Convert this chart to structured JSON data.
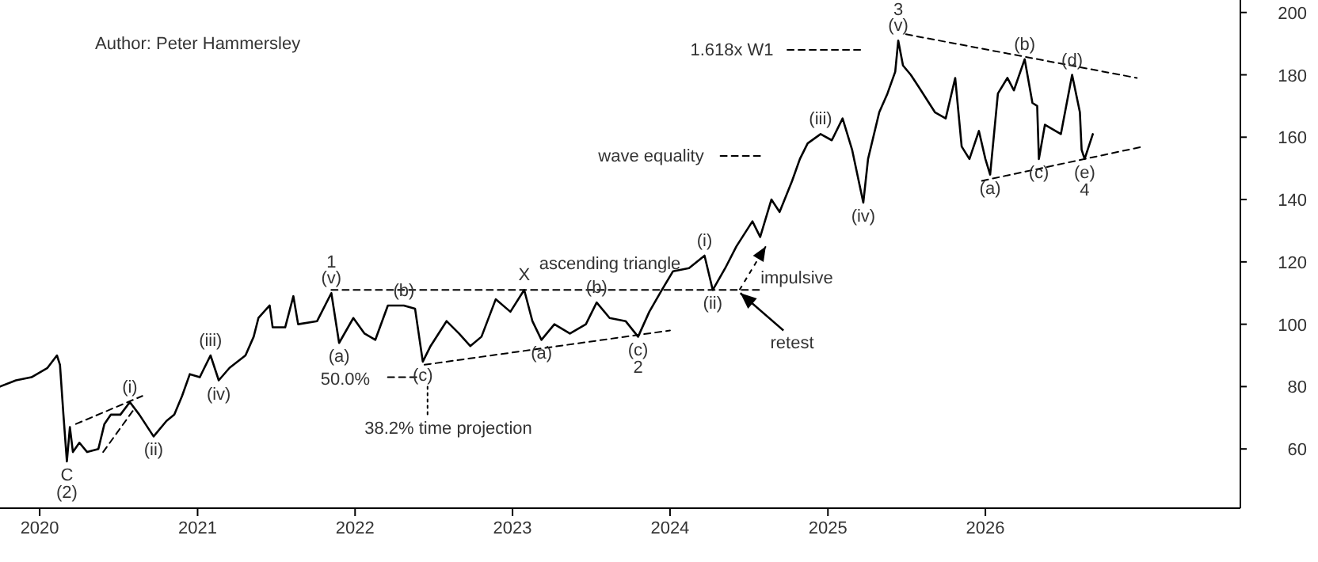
{
  "chart_data": {
    "type": "line",
    "xlim": [
      "2019-10-01",
      "2027-08-15"
    ],
    "ylim": [
      41,
      204
    ],
    "xticks": [
      {
        "value": "2020-01-01",
        "label": "2020"
      },
      {
        "value": "2021-01-01",
        "label": "2021"
      },
      {
        "value": "2022-01-01",
        "label": "2022"
      },
      {
        "value": "2023-01-01",
        "label": "2023"
      },
      {
        "value": "2024-01-01",
        "label": "2024"
      },
      {
        "value": "2025-01-01",
        "label": "2025"
      },
      {
        "value": "2026-01-01",
        "label": "2026"
      }
    ],
    "yticks": [
      60,
      80,
      100,
      120,
      140,
      160,
      180,
      200
    ],
    "series": [
      {
        "color": "#000000",
        "line_style": "solid",
        "x": [
          "2019-10-01",
          "2019-11-07",
          "2019-12-13",
          "2020-01-19",
          "2020-02-10",
          "2020-02-17",
          "2020-02-25",
          "2020-03-04",
          "2020-03-11",
          "2020-03-18",
          "2020-04-02",
          "2020-04-20",
          "2020-05-16",
          "2020-05-30",
          "2020-06-14",
          "2020-07-06",
          "2020-07-28",
          "2020-08-19",
          "2020-09-21",
          "2020-10-21",
          "2020-11-08",
          "2020-11-26",
          "2020-12-14",
          "2021-01-06",
          "2021-01-31",
          "2021-02-19",
          "2021-03-16",
          "2021-04-22",
          "2021-05-11",
          "2021-05-22",
          "2021-06-17",
          "2021-06-24",
          "2021-07-23",
          "2021-08-11",
          "2021-08-22",
          "2021-10-05",
          "2021-11-07",
          "2021-11-25",
          "2021-12-28",
          "2022-01-23",
          "2022-02-17",
          "2022-03-18",
          "2022-04-24",
          "2022-05-20",
          "2022-06-07",
          "2022-06-25",
          "2022-08-01",
          "2022-08-30",
          "2022-09-25",
          "2022-10-21",
          "2022-11-23",
          "2022-12-27",
          "2023-01-28",
          "2023-02-16",
          "2023-03-09",
          "2023-04-08",
          "2023-05-14",
          "2023-06-20",
          "2023-07-15",
          "2023-08-14",
          "2023-09-20",
          "2023-10-19",
          "2023-11-14",
          "2023-12-13",
          "2024-01-08",
          "2024-02-14",
          "2024-03-21",
          "2024-04-09",
          "2024-05-08",
          "2024-06-03",
          "2024-07-10",
          "2024-07-28",
          "2024-08-23",
          "2024-09-11",
          "2024-10-10",
          "2024-10-28",
          "2024-11-15",
          "2024-12-15",
          "2025-01-10",
          "2025-02-04",
          "2025-02-26",
          "2025-03-24",
          "2025-04-04",
          "2025-04-30",
          "2025-05-19",
          "2025-06-06",
          "2025-06-13",
          "2025-06-24",
          "2025-07-12",
          "2025-07-31",
          "2025-09-06",
          "2025-10-01",
          "2025-10-23",
          "2025-11-07",
          "2025-11-25",
          "2025-12-17",
          "2026-01-01",
          "2026-01-12",
          "2026-01-30",
          "2026-02-21",
          "2026-03-08",
          "2026-04-02",
          "2026-04-20",
          "2026-05-01",
          "2026-05-05",
          "2026-05-19",
          "2026-06-25",
          "2026-07-21",
          "2026-08-08",
          "2026-08-12",
          "2026-08-19",
          "2026-09-07"
        ],
        "values": [
          80,
          82,
          83,
          86,
          90,
          87,
          71,
          56,
          67,
          59,
          62,
          59,
          60,
          68,
          71,
          71,
          75,
          71,
          64,
          69,
          71,
          77,
          84,
          83,
          90,
          82,
          86,
          90,
          96,
          102,
          106,
          99,
          99,
          109,
          100,
          101,
          110,
          94,
          102,
          97,
          95,
          106,
          106,
          105,
          88,
          93,
          101,
          97,
          93,
          96,
          108,
          104,
          111,
          101,
          95,
          100,
          97,
          100,
          107,
          102,
          101,
          96,
          104,
          111,
          117,
          118,
          122,
          111,
          118,
          125,
          133,
          128,
          140,
          136,
          146,
          153,
          158,
          161,
          159,
          166,
          156,
          139,
          153,
          168,
          174,
          181,
          191,
          183,
          180,
          176,
          168,
          166,
          179,
          157,
          153,
          162,
          153,
          148,
          174,
          179,
          175,
          185,
          171,
          170,
          153,
          164,
          161,
          180,
          168,
          156,
          153,
          161
        ]
      },
      {
        "color": "#000000",
        "line_style": "dashed",
        "x": [
          "2025-07-01",
          "2026-12-18"
        ],
        "values": [
          193,
          179
        ]
      },
      {
        "color": "#000000",
        "line_style": "dashed",
        "x": [
          "2025-12-24",
          "2027-01-02"
        ],
        "values": [
          146,
          157
        ]
      },
      {
        "color": "#000000",
        "line_style": "dashed",
        "x": [
          "2021-11-07",
          "2024-08-05"
        ],
        "values": [
          111,
          111
        ]
      },
      {
        "color": "#000000",
        "line_style": "dashed",
        "x": [
          "2022-06-11",
          "2024-01-01"
        ],
        "values": [
          87,
          98
        ]
      },
      {
        "color": "#000000",
        "line_style": "dashed",
        "x": [
          "2020-03-25",
          "2020-08-26"
        ],
        "values": [
          68,
          77
        ]
      },
      {
        "color": "#000000",
        "line_style": "dashed",
        "x": [
          "2020-05-27",
          "2020-08-08"
        ],
        "values": [
          59,
          73
        ]
      },
      {
        "color": "#000000",
        "line_style": "dashed",
        "x": [
          "2024-09-29",
          "2025-03-24"
        ],
        "values": [
          188,
          188
        ]
      },
      {
        "color": "#000000",
        "line_style": "dashed",
        "x": [
          "2024-04-27",
          "2024-08-04"
        ],
        "values": [
          154,
          154
        ]
      },
      {
        "color": "#000000",
        "line_style": "dashed",
        "x": [
          "2022-03-18",
          "2022-05-30"
        ],
        "values": [
          83,
          83
        ]
      },
      {
        "color": "#000000",
        "line_style": "dotted",
        "x": [
          "2022-06-18",
          "2022-06-18"
        ],
        "values": [
          80,
          71
        ]
      }
    ],
    "annotations": [
      "Author: Peter Hammersley",
      "50.0%",
      "38.2% time projection",
      "ascending triangle",
      "impulsive",
      "retest",
      "wave equality",
      "1.618x W1",
      {
        "text": "(v)",
        "x": "2021-11-07",
        "y": 110
      },
      {
        "text": "1",
        "x": "2021-11-07",
        "y": 110
      },
      {
        "text": "(a)",
        "x": "2021-11-25",
        "y": 94
      },
      {
        "text": "(b)",
        "x": "2022-04-24",
        "y": 106
      },
      {
        "text": "(c)",
        "x": "2022-06-07",
        "y": 88
      },
      {
        "text": "X",
        "x": "2023-01-28",
        "y": 111
      },
      {
        "text": "(a)",
        "x": "2023-03-09",
        "y": 95
      },
      {
        "text": "(b)",
        "x": "2023-07-15",
        "y": 107
      },
      {
        "text": "(c)",
        "x": "2023-10-19",
        "y": 96
      },
      {
        "text": "2",
        "x": "2023-10-19",
        "y": 96
      },
      {
        "text": "(i)",
        "x": "2024-03-21",
        "y": 122
      },
      {
        "text": "(ii)",
        "x": "2024-04-09",
        "y": 111
      },
      {
        "text": "(iii)",
        "x": "2024-12-15",
        "y": 161
      },
      {
        "text": "(iv)",
        "x": "2025-03-24",
        "y": 139
      },
      {
        "text": "(v)",
        "x": "2025-06-13",
        "y": 191
      },
      {
        "text": "3",
        "x": "2025-06-13",
        "y": 191
      },
      {
        "text": "(a)",
        "x": "2026-01-12",
        "y": 148
      },
      {
        "text": "(b)",
        "x": "2026-04-02",
        "y": 185
      },
      {
        "text": "(c)",
        "x": "2026-05-05",
        "y": 153
      },
      {
        "text": "(d)",
        "x": "2026-07-21",
        "y": 180
      },
      {
        "text": "(e)",
        "x": "2026-08-19",
        "y": 153
      },
      {
        "text": "4",
        "x": "2026-08-19",
        "y": 153
      },
      {
        "text": "C",
        "x": "2020-03-04",
        "y": 56
      },
      {
        "text": "(2)",
        "x": "2020-03-04",
        "y": 56
      },
      {
        "text": "(i)",
        "x": "2020-07-28",
        "y": 75
      },
      {
        "text": "(ii)",
        "x": "2020-09-21",
        "y": 64
      },
      {
        "text": "(iii)",
        "x": "2021-01-31",
        "y": 90
      },
      {
        "text": "(iv)",
        "x": "2021-02-19",
        "y": 82
      }
    ]
  }
}
